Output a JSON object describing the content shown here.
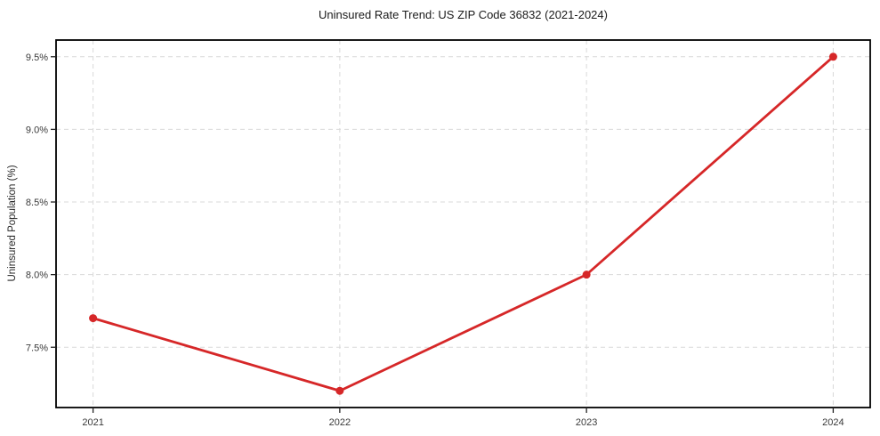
{
  "figure": {
    "background": "#ffffff"
  },
  "chart_data": {
    "type": "line",
    "title": "Uninsured Rate Trend: US ZIP Code 36832 (2021-2024)",
    "xlabel": "",
    "ylabel": "Uninsured Population (%)",
    "x": [
      2021,
      2022,
      2023,
      2024
    ],
    "values": [
      7.7,
      7.2,
      8.0,
      9.5
    ],
    "xlim": [
      2020.85,
      2024.15
    ],
    "ylim": [
      7.085,
      9.615
    ],
    "xticks": [
      {
        "value": 2021,
        "label": "2021"
      },
      {
        "value": 2022,
        "label": "2022"
      },
      {
        "value": 2023,
        "label": "2023"
      },
      {
        "value": 2024,
        "label": "2024"
      }
    ],
    "yticks": [
      {
        "value": 7.5,
        "label": "7.5%"
      },
      {
        "value": 8.0,
        "label": "8.0%"
      },
      {
        "value": 8.5,
        "label": "8.5%"
      },
      {
        "value": 9.0,
        "label": "9.0%"
      },
      {
        "value": 9.5,
        "label": "9.5%"
      }
    ],
    "grid": true,
    "grid_style": "dashed",
    "legend_position": "none",
    "colors": {
      "line": "#d62728",
      "marker": "#d62728",
      "grid": "#d9d9d9",
      "border": "#000000",
      "tick_text": "#3a3a3a",
      "tick_mark": "#222222"
    }
  }
}
